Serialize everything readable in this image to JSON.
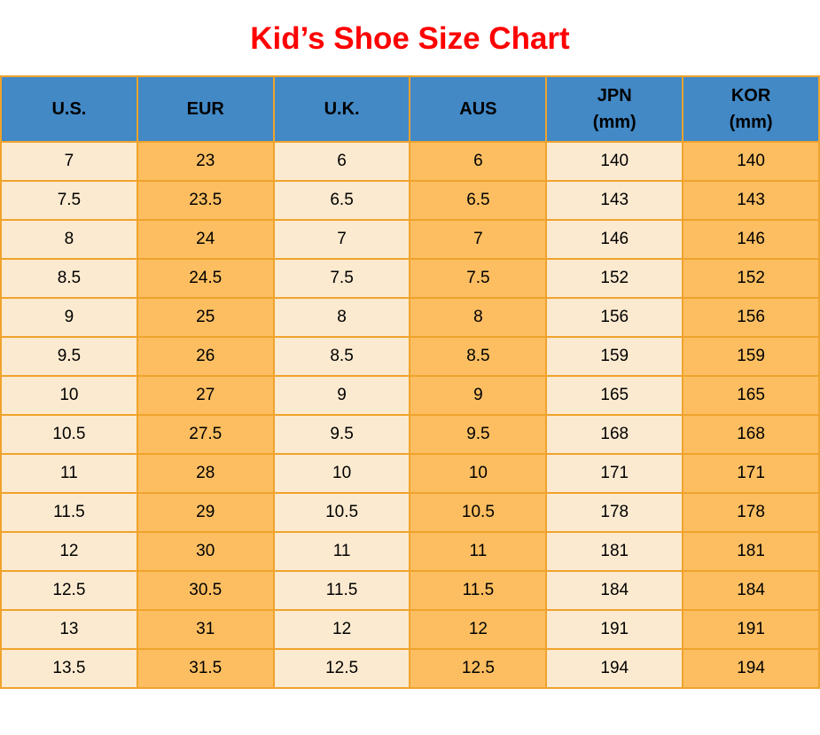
{
  "title": "Kid’s Shoe Size Chart",
  "colors": {
    "title_color": "#FF0000",
    "header_bg": "#4289C6",
    "border_color": "#F0A32C",
    "cell_cream": "#FCEAD0",
    "cell_orange": "#FCBE61",
    "text_color": "#000000",
    "page_bg": "#FFFFFF"
  },
  "table": {
    "headers": [
      "U.S.",
      "EUR",
      "U.K.",
      "AUS",
      "JPN\n(mm)",
      "KOR\n(mm)"
    ],
    "rows": [
      [
        "7",
        "23",
        "6",
        "6",
        "140",
        "140"
      ],
      [
        "7.5",
        "23.5",
        "6.5",
        "6.5",
        "143",
        "143"
      ],
      [
        "8",
        "24",
        "7",
        "7",
        "146",
        "146"
      ],
      [
        "8.5",
        "24.5",
        "7.5",
        "7.5",
        "152",
        "152"
      ],
      [
        "9",
        "25",
        "8",
        "8",
        "156",
        "156"
      ],
      [
        "9.5",
        "26",
        "8.5",
        "8.5",
        "159",
        "159"
      ],
      [
        "10",
        "27",
        "9",
        "9",
        "165",
        "165"
      ],
      [
        "10.5",
        "27.5",
        "9.5",
        "9.5",
        "168",
        "168"
      ],
      [
        "11",
        "28",
        "10",
        "10",
        "171",
        "171"
      ],
      [
        "11.5",
        "29",
        "10.5",
        "10.5",
        "178",
        "178"
      ],
      [
        "12",
        "30",
        "11",
        "11",
        "181",
        "181"
      ],
      [
        "12.5",
        "30.5",
        "11.5",
        "11.5",
        "184",
        "184"
      ],
      [
        "13",
        "31",
        "12",
        "12",
        "191",
        "191"
      ],
      [
        "13.5",
        "31.5",
        "12.5",
        "12.5",
        "194",
        "194"
      ]
    ]
  },
  "chart_data": {
    "type": "table",
    "title": "Kid's Shoe Size Chart",
    "columns": [
      "U.S.",
      "EUR",
      "U.K.",
      "AUS",
      "JPN (mm)",
      "KOR (mm)"
    ],
    "rows": [
      [
        7,
        23,
        6,
        6,
        140,
        140
      ],
      [
        7.5,
        23.5,
        6.5,
        6.5,
        143,
        143
      ],
      [
        8,
        24,
        7,
        7,
        146,
        146
      ],
      [
        8.5,
        24.5,
        7.5,
        7.5,
        152,
        152
      ],
      [
        9,
        25,
        8,
        8,
        156,
        156
      ],
      [
        9.5,
        26,
        8.5,
        8.5,
        159,
        159
      ],
      [
        10,
        27,
        9,
        9,
        165,
        165
      ],
      [
        10.5,
        27.5,
        9.5,
        9.5,
        168,
        168
      ],
      [
        11,
        28,
        10,
        10,
        171,
        171
      ],
      [
        11.5,
        29,
        10.5,
        10.5,
        178,
        178
      ],
      [
        12,
        30,
        11,
        11,
        181,
        181
      ],
      [
        12.5,
        30.5,
        11.5,
        11.5,
        184,
        184
      ],
      [
        13,
        31,
        12,
        12,
        191,
        191
      ],
      [
        13.5,
        31.5,
        12.5,
        12.5,
        194,
        194
      ]
    ],
    "layout": {
      "column_stripes": [
        "cream",
        "orange",
        "cream",
        "orange",
        "cream",
        "orange"
      ],
      "header_style": "blue-bold",
      "grid": true
    }
  }
}
